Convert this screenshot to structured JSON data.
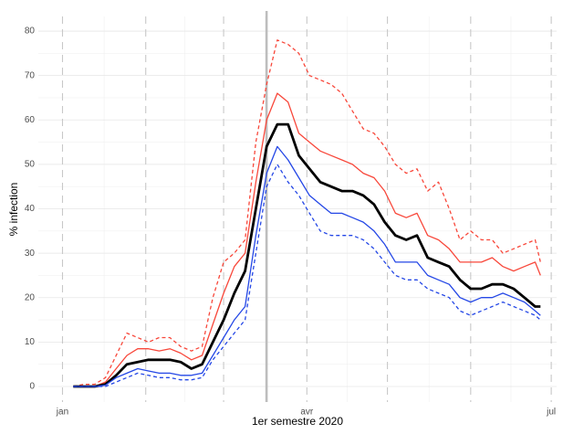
{
  "chart_data": {
    "type": "line",
    "xlabel": "1er semestre 2020",
    "ylabel": "% infection",
    "xlim": [
      -9,
      184
    ],
    "ylim": [
      -3.5,
      83.3
    ],
    "xticks": [
      {
        "value": 0,
        "label": "jan"
      },
      {
        "value": 91,
        "label": "avr"
      },
      {
        "value": 182,
        "label": "jul"
      }
    ],
    "yticks": [
      0,
      10,
      20,
      30,
      40,
      50,
      60,
      70,
      80
    ],
    "grid": true,
    "dashed_vlines": [
      0,
      31,
      60,
      91,
      121,
      152,
      182
    ],
    "solid_vline": 76,
    "x": [
      4,
      8,
      12,
      16,
      20,
      24,
      28,
      32,
      36,
      40,
      44,
      48,
      52,
      56,
      60,
      64,
      68,
      72,
      76,
      80,
      84,
      88,
      92,
      96,
      100,
      104,
      108,
      112,
      116,
      120,
      124,
      128,
      132,
      136,
      140,
      144,
      148,
      152,
      156,
      160,
      164,
      168,
      172,
      176,
      178
    ],
    "series": [
      {
        "color": "#f8473a",
        "linestyle": "dashed",
        "width": 1.3,
        "values": [
          0,
          0.5,
          0.5,
          2,
          7,
          12,
          11,
          10,
          11,
          11,
          9,
          8,
          9,
          20,
          28,
          30,
          33,
          55,
          68,
          78,
          77,
          75,
          70,
          69,
          68,
          66,
          62,
          58,
          57,
          54,
          50,
          48,
          49,
          44,
          46,
          40,
          33,
          35,
          33,
          33,
          30,
          31,
          32,
          33,
          28
        ]
      },
      {
        "color": "#f8473a",
        "linestyle": "solid",
        "width": 1.3,
        "values": [
          0,
          0,
          0,
          1,
          4,
          7,
          8.5,
          8.5,
          8,
          8.5,
          7.5,
          6,
          7,
          14,
          21,
          27,
          30,
          46,
          60,
          66,
          64,
          57,
          55,
          53,
          52,
          51,
          50,
          48,
          47,
          44,
          39,
          38,
          39,
          34,
          33,
          31,
          28,
          28,
          28,
          29,
          27,
          26,
          27,
          28,
          25
        ]
      },
      {
        "color": "#000000",
        "linestyle": "solid",
        "width": 2.8,
        "values": [
          0,
          0,
          0,
          0.5,
          2.5,
          5,
          5.5,
          6,
          6,
          6,
          5.5,
          4,
          5,
          10,
          15,
          21,
          26,
          40,
          54,
          59,
          59,
          52,
          49,
          46,
          45,
          44,
          44,
          43,
          41,
          37,
          34,
          33,
          34,
          29,
          28,
          27,
          24,
          22,
          22,
          23,
          23,
          22,
          20,
          18,
          18
        ]
      },
      {
        "color": "#2447e6",
        "linestyle": "solid",
        "width": 1.3,
        "values": [
          0,
          0,
          0,
          0.3,
          2,
          3,
          4,
          3.5,
          3,
          3,
          2.5,
          2.5,
          3,
          7,
          11,
          15,
          18,
          34,
          48,
          54,
          51,
          47,
          43,
          41,
          39,
          39,
          38,
          37,
          35,
          32,
          28,
          28,
          28,
          25,
          24,
          23,
          20,
          19,
          20,
          20,
          21,
          20,
          19,
          17,
          16
        ]
      },
      {
        "color": "#2447e6",
        "linestyle": "dashed",
        "width": 1.3,
        "values": [
          0,
          0,
          0,
          0,
          1,
          2,
          3,
          2.5,
          2,
          2,
          1.5,
          1.5,
          2,
          6,
          9,
          12,
          15,
          30,
          45,
          50,
          46,
          43,
          39,
          35,
          34,
          34,
          34,
          33,
          31,
          28,
          25,
          24,
          24,
          22,
          21,
          20,
          17,
          16,
          17,
          18,
          19,
          18,
          17,
          16,
          15
        ]
      }
    ]
  }
}
